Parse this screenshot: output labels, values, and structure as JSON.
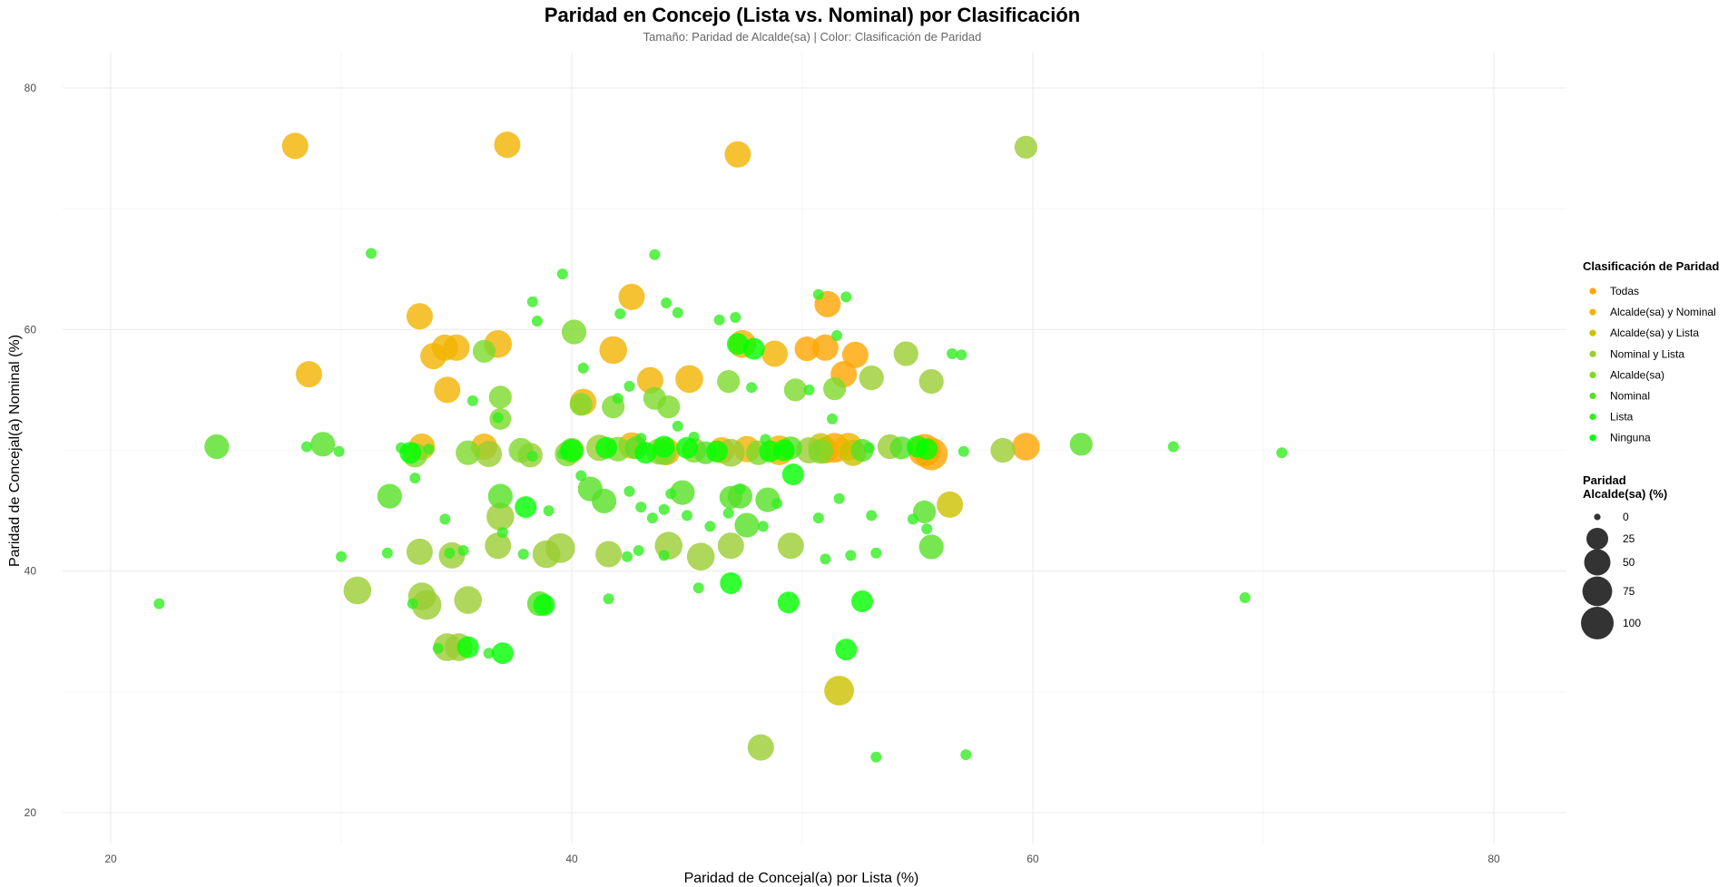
{
  "chart_data": {
    "type": "scatter",
    "title": "Paridad en Concejo (Lista vs. Nominal) por Clasificación",
    "subtitle": "Tamaño: Paridad de Alcalde(sa) | Color: Clasificación de Paridad",
    "xlabel": "Paridad de Concejal(a) por Lista (%)",
    "ylabel": "Paridad de Concejal(a) Nominal (%)",
    "xlim": [
      18,
      84
    ],
    "ylim": [
      18,
      83
    ],
    "x_ticks": [
      20,
      40,
      60,
      80
    ],
    "y_ticks": [
      20,
      40,
      60,
      80
    ],
    "grid": true,
    "legend_position": "right",
    "color_legend": {
      "title": "Clasificación de Paridad",
      "items": [
        {
          "label": "Todas",
          "color": "#FFA500"
        },
        {
          "label": "Alcalde(sa) y Nominal",
          "color": "#F2B300"
        },
        {
          "label": "Alcalde(sa) y Lista",
          "color": "#CCC000"
        },
        {
          "label": "Nominal y Lista",
          "color": "#9ACD32"
        },
        {
          "label": "Alcalde(sa)",
          "color": "#7CD92B"
        },
        {
          "label": "Nominal",
          "color": "#55E025"
        },
        {
          "label": "Lista",
          "color": "#33EE20"
        },
        {
          "label": "Ninguna",
          "color": "#00FF00"
        }
      ]
    },
    "size_legend": {
      "title_lines": [
        "Paridad",
        "Alcalde(sa) (%)"
      ],
      "values": [
        0,
        25,
        50,
        75,
        100
      ]
    },
    "series": [
      {
        "name": "Todas",
        "points": [
          [
            51.1,
            62.1,
            50
          ],
          [
            52.3,
            57.9,
            50
          ],
          [
            51.8,
            56.3,
            50
          ],
          [
            51.4,
            50.2,
            75
          ],
          [
            55.3,
            50.0,
            100
          ],
          [
            55.6,
            49.7,
            100
          ],
          [
            59.7,
            50.3,
            60
          ],
          [
            51.0,
            58.5,
            50
          ],
          [
            50.2,
            58.4,
            40
          ],
          [
            51.0,
            50.0,
            50
          ]
        ]
      },
      {
        "name": "Alcalde(sa) y Nominal",
        "points": [
          [
            28.0,
            75.2,
            50
          ],
          [
            37.2,
            75.3,
            50
          ],
          [
            47.2,
            74.5,
            50
          ],
          [
            28.6,
            56.3,
            50
          ],
          [
            33.4,
            61.1,
            50
          ],
          [
            34.5,
            58.5,
            50
          ],
          [
            34.0,
            57.8,
            50
          ],
          [
            35.0,
            58.5,
            50
          ],
          [
            36.8,
            58.8,
            60
          ],
          [
            34.6,
            55.0,
            50
          ],
          [
            42.6,
            62.7,
            50
          ],
          [
            41.8,
            58.3,
            60
          ],
          [
            43.4,
            55.8,
            50
          ],
          [
            45.1,
            55.9,
            60
          ],
          [
            47.4,
            58.8,
            60
          ],
          [
            48.8,
            58.0,
            50
          ],
          [
            40.5,
            54.0,
            50
          ],
          [
            33.5,
            50.3,
            50
          ],
          [
            36.2,
            50.3,
            50
          ],
          [
            42.6,
            50.4,
            50
          ],
          [
            44.1,
            49.9,
            60
          ],
          [
            46.5,
            50.0,
            50
          ],
          [
            47.6,
            50.1,
            50
          ],
          [
            49.0,
            50.0,
            75
          ],
          [
            52.0,
            50.3,
            60
          ]
        ]
      },
      {
        "name": "Alcalde(sa) y Lista",
        "points": [
          [
            51.6,
            30.1,
            75
          ],
          [
            56.4,
            45.5,
            50
          ],
          [
            52.2,
            49.8,
            50
          ],
          [
            50.8,
            50.4,
            40
          ]
        ]
      },
      {
        "name": "Nominal y Lista",
        "points": [
          [
            59.7,
            75.1,
            30
          ],
          [
            48.2,
            25.4,
            50
          ],
          [
            53.0,
            56.0,
            40
          ],
          [
            54.5,
            58.0,
            40
          ],
          [
            55.6,
            55.7,
            40
          ],
          [
            58.7,
            50.0,
            40
          ],
          [
            30.7,
            38.4,
            60
          ],
          [
            33.5,
            37.9,
            60
          ],
          [
            33.7,
            37.2,
            75
          ],
          [
            35.5,
            37.6,
            60
          ],
          [
            34.6,
            33.7,
            60
          ],
          [
            35.1,
            33.7,
            60
          ],
          [
            33.4,
            41.6,
            50
          ],
          [
            34.8,
            41.3,
            50
          ],
          [
            36.8,
            42.1,
            50
          ],
          [
            38.9,
            41.4,
            60
          ],
          [
            39.5,
            41.9,
            75
          ],
          [
            41.6,
            41.4,
            50
          ],
          [
            44.2,
            42.1,
            60
          ],
          [
            45.6,
            41.2,
            60
          ],
          [
            46.9,
            42.1,
            50
          ],
          [
            49.5,
            42.1,
            50
          ],
          [
            36.9,
            44.5,
            60
          ],
          [
            36.4,
            49.7,
            50
          ],
          [
            38.2,
            49.6,
            40
          ],
          [
            40.0,
            50.0,
            40
          ],
          [
            41.2,
            50.2,
            50
          ],
          [
            43.8,
            49.9,
            50
          ],
          [
            46.9,
            49.8,
            60
          ],
          [
            50.3,
            50.0,
            50
          ],
          [
            53.8,
            50.3,
            40
          ]
        ]
      },
      {
        "name": "Alcalde(sa)",
        "points": [
          [
            36.2,
            58.2,
            30
          ],
          [
            36.9,
            54.4,
            30
          ],
          [
            36.9,
            52.6,
            25
          ],
          [
            40.4,
            53.8,
            30
          ],
          [
            41.8,
            53.6,
            30
          ],
          [
            43.6,
            54.3,
            30
          ],
          [
            44.2,
            53.6,
            30
          ],
          [
            51.4,
            55.1,
            30
          ],
          [
            49.7,
            55.0,
            30
          ],
          [
            46.8,
            55.7,
            30
          ],
          [
            40.1,
            59.8,
            40
          ],
          [
            33.2,
            49.6,
            40
          ],
          [
            35.5,
            49.8,
            40
          ],
          [
            37.8,
            50.0,
            40
          ],
          [
            39.8,
            49.7,
            40
          ],
          [
            42.0,
            50.1,
            40
          ],
          [
            44.0,
            49.8,
            40
          ],
          [
            45.3,
            50.0,
            40
          ],
          [
            48.1,
            49.8,
            40
          ],
          [
            50.8,
            49.9,
            40
          ]
        ]
      },
      {
        "name": "Nominal",
        "points": [
          [
            24.6,
            50.3,
            40
          ],
          [
            29.2,
            50.5,
            40
          ],
          [
            32.1,
            46.2,
            40
          ],
          [
            36.9,
            46.2,
            40
          ],
          [
            38.6,
            37.3,
            40
          ],
          [
            40.8,
            46.8,
            40
          ],
          [
            41.4,
            45.8,
            40
          ],
          [
            44.8,
            46.5,
            40
          ],
          [
            47.3,
            46.2,
            40
          ],
          [
            48.5,
            45.9,
            40
          ],
          [
            47.6,
            43.8,
            40
          ],
          [
            46.9,
            46.1,
            30
          ],
          [
            42.8,
            50.2,
            30
          ],
          [
            45.8,
            49.8,
            30
          ],
          [
            49.5,
            50.2,
            30
          ],
          [
            52.6,
            50.0,
            30
          ],
          [
            54.3,
            50.2,
            30
          ],
          [
            55.3,
            44.9,
            30
          ],
          [
            55.6,
            42.0,
            40
          ],
          [
            62.1,
            50.5,
            30
          ]
        ]
      },
      {
        "name": "Lista",
        "points": [
          [
            31.3,
            66.3,
            0
          ],
          [
            38.3,
            62.3,
            0
          ],
          [
            39.6,
            64.6,
            0
          ],
          [
            43.6,
            66.2,
            0
          ],
          [
            44.1,
            62.2,
            0
          ],
          [
            42.1,
            61.3,
            0
          ],
          [
            44.6,
            61.4,
            0
          ],
          [
            46.4,
            60.8,
            0
          ],
          [
            47.1,
            61.0,
            0
          ],
          [
            38.5,
            60.7,
            0
          ],
          [
            50.7,
            62.9,
            0
          ],
          [
            51.9,
            62.7,
            0
          ],
          [
            51.5,
            59.5,
            0
          ],
          [
            56.5,
            58.0,
            0
          ],
          [
            56.9,
            57.9,
            0
          ],
          [
            35.7,
            54.1,
            0
          ],
          [
            40.5,
            56.8,
            0
          ],
          [
            42.5,
            55.3,
            0
          ],
          [
            47.8,
            55.2,
            0
          ],
          [
            42.0,
            54.3,
            0
          ],
          [
            36.8,
            52.7,
            0
          ],
          [
            44.6,
            52.0,
            0
          ],
          [
            50.3,
            55.0,
            0
          ],
          [
            51.3,
            52.6,
            0
          ],
          [
            45.3,
            51.1,
            0
          ],
          [
            28.5,
            50.3,
            0
          ],
          [
            29.9,
            49.9,
            0
          ],
          [
            32.6,
            50.2,
            0
          ],
          [
            33.8,
            50.1,
            0
          ],
          [
            38.3,
            49.5,
            0
          ],
          [
            39.6,
            49.7,
            0
          ],
          [
            43.0,
            51.0,
            0
          ],
          [
            48.4,
            50.9,
            0
          ],
          [
            52.9,
            50.2,
            0
          ],
          [
            57.0,
            49.9,
            0
          ],
          [
            66.1,
            50.3,
            0
          ],
          [
            70.8,
            49.8,
            0
          ],
          [
            33.2,
            47.7,
            0
          ],
          [
            34.5,
            44.3,
            0
          ],
          [
            37.0,
            43.2,
            0
          ],
          [
            39.0,
            45.0,
            0
          ],
          [
            40.4,
            47.9,
            0
          ],
          [
            43.0,
            45.3,
            0
          ],
          [
            42.5,
            46.6,
            0
          ],
          [
            43.5,
            44.4,
            0
          ],
          [
            44.0,
            45.1,
            0
          ],
          [
            44.3,
            46.4,
            0
          ],
          [
            45.0,
            44.6,
            0
          ],
          [
            46.0,
            43.7,
            0
          ],
          [
            46.8,
            44.8,
            0
          ],
          [
            47.3,
            46.8,
            0
          ],
          [
            48.3,
            43.7,
            0
          ],
          [
            48.9,
            45.6,
            0
          ],
          [
            50.7,
            44.4,
            0
          ],
          [
            51.6,
            46.0,
            0
          ],
          [
            53.0,
            44.6,
            0
          ],
          [
            54.8,
            44.3,
            0
          ],
          [
            55.4,
            43.5,
            0
          ],
          [
            30.0,
            41.2,
            0
          ],
          [
            32.0,
            41.5,
            0
          ],
          [
            33.1,
            37.3,
            0
          ],
          [
            34.2,
            33.6,
            0
          ],
          [
            34.7,
            41.5,
            0
          ],
          [
            35.3,
            41.7,
            0
          ],
          [
            36.4,
            33.2,
            0
          ],
          [
            37.9,
            41.4,
            0
          ],
          [
            41.6,
            37.7,
            0
          ],
          [
            42.4,
            41.2,
            0
          ],
          [
            42.9,
            41.7,
            0
          ],
          [
            44.0,
            41.3,
            0
          ],
          [
            45.5,
            38.6,
            0
          ],
          [
            51.0,
            41.0,
            0
          ],
          [
            52.1,
            41.3,
            0
          ],
          [
            53.2,
            41.5,
            0
          ],
          [
            69.2,
            37.8,
            0
          ],
          [
            22.1,
            37.3,
            0
          ],
          [
            53.2,
            24.6,
            0
          ],
          [
            57.1,
            24.8,
            0
          ]
        ]
      },
      {
        "name": "Ninguna",
        "points": [
          [
            40.0,
            50.0,
            30
          ],
          [
            41.5,
            50.2,
            25
          ],
          [
            43.2,
            49.8,
            25
          ],
          [
            45.0,
            50.2,
            25
          ],
          [
            46.3,
            49.9,
            25
          ],
          [
            48.6,
            49.9,
            25
          ],
          [
            49.6,
            48.0,
            25
          ],
          [
            46.9,
            39.0,
            25
          ],
          [
            49.4,
            37.4,
            25
          ],
          [
            51.9,
            33.5,
            25
          ],
          [
            52.6,
            37.5,
            25
          ],
          [
            55.4,
            50.1,
            25
          ],
          [
            55.0,
            50.3,
            25
          ],
          [
            33.0,
            49.8,
            25
          ],
          [
            37.0,
            33.2,
            25
          ],
          [
            38.8,
            37.2,
            25
          ],
          [
            35.5,
            33.7,
            25
          ],
          [
            47.2,
            58.8,
            25
          ],
          [
            47.9,
            58.4,
            25
          ],
          [
            38.0,
            45.3,
            25
          ],
          [
            44.0,
            50.3,
            25
          ],
          [
            49.2,
            50.0,
            25
          ]
        ]
      }
    ]
  }
}
